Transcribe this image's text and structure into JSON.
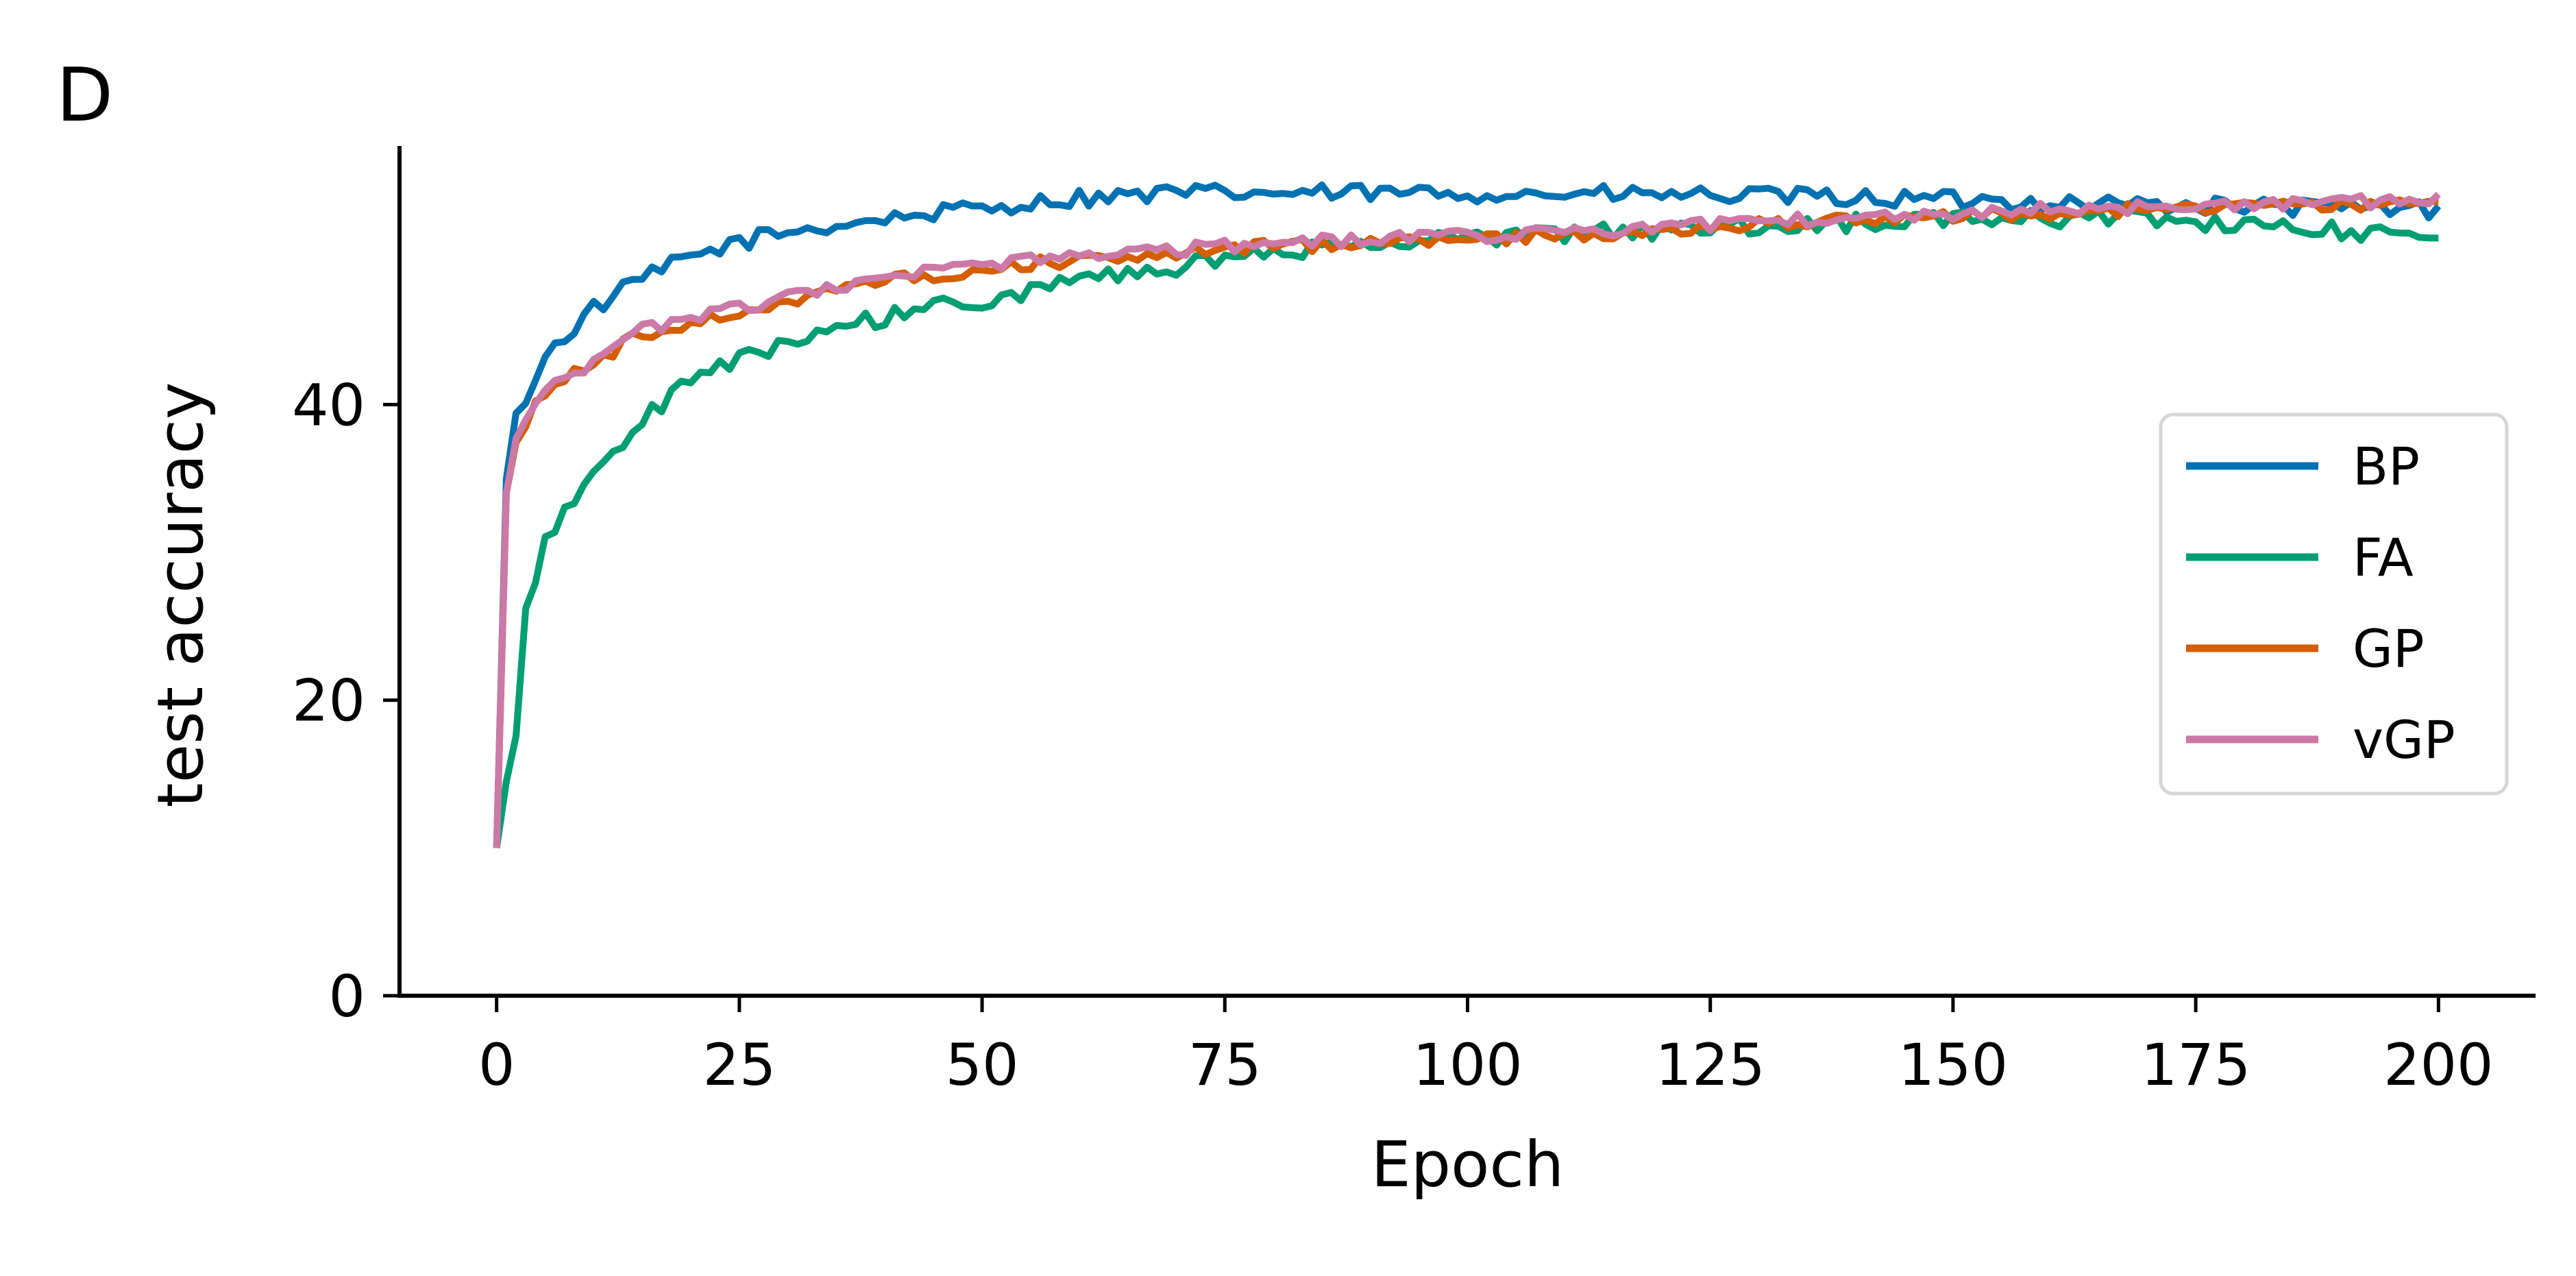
{
  "panel_label": "D",
  "chart_data": {
    "type": "line",
    "title": "",
    "xlabel": "Epoch",
    "ylabel": "test accuracy",
    "xlim": [
      -10,
      210
    ],
    "ylim": [
      0,
      57.5
    ],
    "xticks": [
      0,
      25,
      50,
      75,
      100,
      125,
      150,
      175,
      200
    ],
    "yticks": [
      0,
      20,
      40
    ],
    "grid": false,
    "legend_position": "center-right",
    "x": {
      "start": 0,
      "end": 200,
      "step": 1
    },
    "series": [
      {
        "name": "BP",
        "color": "#0072B2",
        "anchors": [
          [
            0,
            10
          ],
          [
            1,
            35
          ],
          [
            2,
            39
          ],
          [
            4,
            42
          ],
          [
            6,
            44
          ],
          [
            10,
            46.5
          ],
          [
            15,
            48.5
          ],
          [
            20,
            50
          ],
          [
            25,
            51
          ],
          [
            30,
            51.7
          ],
          [
            40,
            52.6
          ],
          [
            50,
            53.3
          ],
          [
            60,
            54
          ],
          [
            70,
            54.3
          ],
          [
            80,
            54.3
          ],
          [
            100,
            54.3
          ],
          [
            120,
            54.2
          ],
          [
            140,
            54
          ],
          [
            160,
            53.7
          ],
          [
            180,
            53.4
          ],
          [
            200,
            53.2
          ]
        ],
        "noise": 0.6
      },
      {
        "name": "FA",
        "color": "#009E73",
        "anchors": [
          [
            0,
            10
          ],
          [
            1,
            14.5
          ],
          [
            2,
            18
          ],
          [
            3,
            26
          ],
          [
            4,
            27.5
          ],
          [
            5,
            31
          ],
          [
            8,
            33.5
          ],
          [
            10,
            35.5
          ],
          [
            15,
            39
          ],
          [
            20,
            41.5
          ],
          [
            25,
            43
          ],
          [
            30,
            44.4
          ],
          [
            40,
            45.9
          ],
          [
            50,
            47.1
          ],
          [
            60,
            48.3
          ],
          [
            70,
            49.3
          ],
          [
            80,
            50.2
          ],
          [
            90,
            50.9
          ],
          [
            100,
            51.3
          ],
          [
            120,
            51.8
          ],
          [
            140,
            52.3
          ],
          [
            160,
            52.6
          ],
          [
            170,
            52.6
          ],
          [
            180,
            52
          ],
          [
            200,
            51.5
          ]
        ],
        "noise": 0.6
      },
      {
        "name": "GP",
        "color": "#D55E00",
        "anchors": [
          [
            0,
            10
          ],
          [
            1,
            34
          ],
          [
            2,
            37.5
          ],
          [
            4,
            40
          ],
          [
            6,
            41.5
          ],
          [
            10,
            42.8
          ],
          [
            15,
            44.8
          ],
          [
            20,
            45.5
          ],
          [
            30,
            47
          ],
          [
            40,
            48.3
          ],
          [
            50,
            49.2
          ],
          [
            60,
            49.8
          ],
          [
            70,
            50.3
          ],
          [
            80,
            50.7
          ],
          [
            100,
            51.2
          ],
          [
            120,
            51.8
          ],
          [
            140,
            52.5
          ],
          [
            160,
            53
          ],
          [
            180,
            53.4
          ],
          [
            200,
            53.6
          ]
        ],
        "noise": 0.45
      },
      {
        "name": "vGP",
        "color": "#CC79A7",
        "anchors": [
          [
            0,
            10
          ],
          [
            1,
            34
          ],
          [
            2,
            37.5
          ],
          [
            4,
            40
          ],
          [
            6,
            41.5
          ],
          [
            10,
            42.8
          ],
          [
            15,
            45
          ],
          [
            20,
            45.8
          ],
          [
            30,
            47.2
          ],
          [
            40,
            48.5
          ],
          [
            50,
            49.4
          ],
          [
            60,
            50
          ],
          [
            70,
            50.5
          ],
          [
            80,
            50.9
          ],
          [
            100,
            51.4
          ],
          [
            120,
            52
          ],
          [
            140,
            52.7
          ],
          [
            160,
            53.2
          ],
          [
            180,
            53.6
          ],
          [
            200,
            53.8
          ]
        ],
        "noise": 0.45
      }
    ]
  }
}
